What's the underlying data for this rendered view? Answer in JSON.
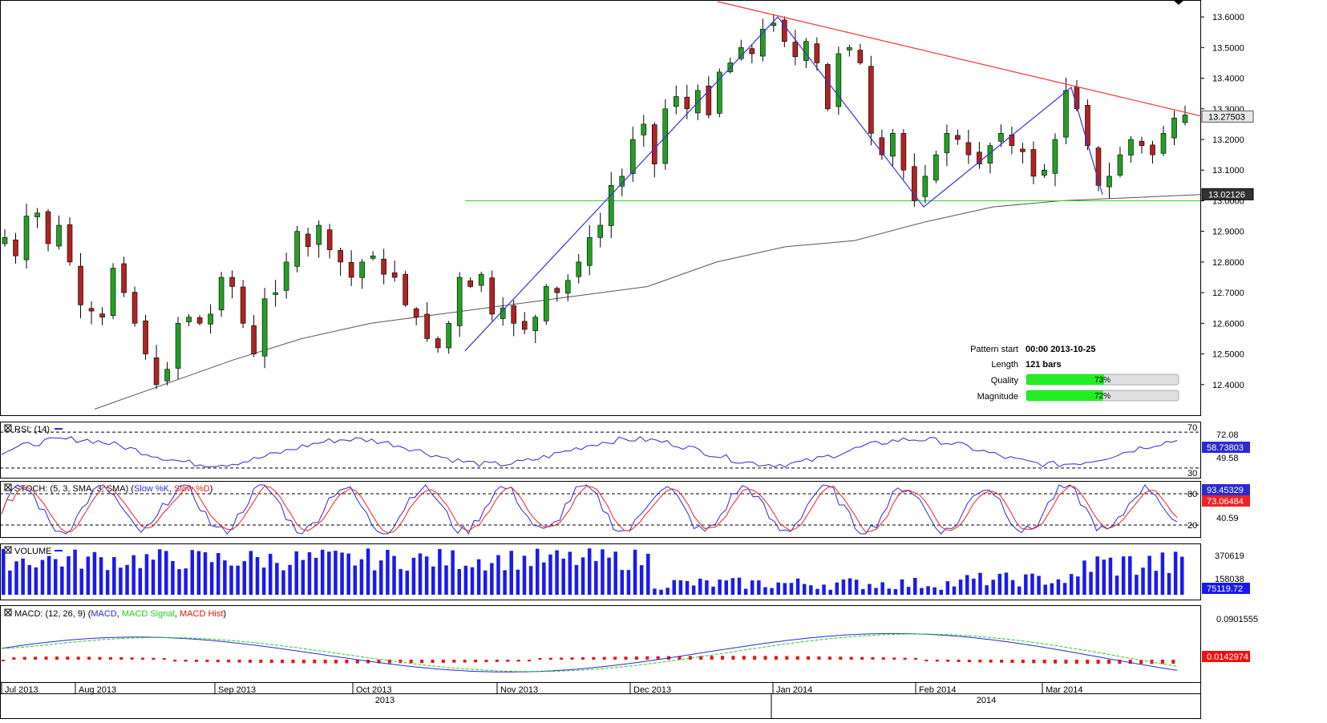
{
  "chart_data": {
    "type": "candlestick",
    "x_labels": [
      "Jul 2013",
      "Aug 2013",
      "Sep 2013",
      "Oct 2013",
      "Nov 2013",
      "Dec 2013",
      "Jan 2014",
      "Feb 2014",
      "Mar 2014"
    ],
    "year_labels": [
      "2013",
      "2014"
    ],
    "price": {
      "ylim": [
        12.3,
        13.65
      ],
      "ticks": [
        "13.6000",
        "13.5000",
        "13.4000",
        "13.3000",
        "13.2000",
        "13.1000",
        "13.0000",
        "12.9000",
        "12.8000",
        "12.7000",
        "12.6000",
        "12.5000",
        "12.4000"
      ],
      "last_price": "13.27503",
      "ma_value": "13.02126",
      "support_level": 13.0,
      "close_path": [
        12.88,
        12.82,
        12.95,
        12.96,
        12.86,
        12.92,
        12.8,
        12.66,
        12.64,
        12.62,
        12.78,
        12.7,
        12.6,
        12.5,
        12.4,
        12.45,
        12.6,
        12.62,
        12.6,
        12.63,
        12.75,
        12.72,
        12.6,
        12.5,
        12.68,
        12.7,
        12.8,
        12.9,
        12.85,
        12.92,
        12.84,
        12.8,
        12.75,
        12.8,
        12.82,
        12.76,
        12.75,
        12.66,
        12.62,
        12.55,
        12.52,
        12.6,
        12.75,
        12.72,
        12.76,
        12.63,
        12.65,
        12.6,
        12.58,
        12.62,
        12.72,
        12.7,
        12.74,
        12.8,
        12.88,
        12.92,
        13.05,
        13.08,
        13.2,
        13.25,
        13.12,
        13.3,
        13.34,
        13.3,
        13.36,
        13.28,
        13.42,
        13.45,
        13.5,
        13.48,
        13.56,
        13.58,
        13.52,
        13.47,
        13.52,
        13.45,
        13.3,
        13.48,
        13.5,
        13.45,
        13.22,
        13.15,
        13.22,
        13.1,
        13.0,
        13.08,
        13.15,
        13.22,
        13.2,
        13.15,
        13.12,
        13.18,
        13.22,
        13.18,
        13.16,
        13.08,
        13.1,
        13.2,
        13.36,
        13.3,
        13.18,
        13.05,
        13.08,
        13.15,
        13.2,
        13.18,
        13.15,
        13.22,
        13.27,
        13.28
      ],
      "ma_path": [
        12.32,
        12.4,
        12.48,
        12.55,
        12.6,
        12.63,
        12.66,
        12.69,
        12.72,
        12.8,
        12.85,
        12.87,
        12.93,
        12.98,
        13.0,
        13.01,
        13.02
      ],
      "zigzag": [
        {
          "x": 580,
          "y": 12.51
        },
        {
          "x": 970,
          "y": 13.6
        },
        {
          "x": 1152,
          "y": 12.98
        },
        {
          "x": 1336,
          "y": 13.37
        },
        {
          "x": 1375,
          "y": 13.02
        }
      ],
      "trendline": [
        {
          "x": 895,
          "y": 13.65
        },
        {
          "x": 1500,
          "y": 13.275
        }
      ]
    },
    "pattern_info": {
      "pattern_start_label": "Pattern start",
      "pattern_start_value": "00:00 2013-10-25",
      "length_label": "Length",
      "length_value": "121 bars",
      "quality_label": "Quality",
      "quality_pct": 73,
      "quality_text": "73%",
      "magnitude_label": "Magnitude",
      "magnitude_pct": 72,
      "magnitude_text": "72%"
    },
    "rsi": {
      "title": "RSI: (14)",
      "levels": [
        70,
        30
      ],
      "level_labels": [
        "70",
        "30"
      ],
      "ticks": [
        "72.08",
        "49.58"
      ],
      "last_value": "58.73803"
    },
    "stoch": {
      "title_prefix": "STOCH: (5, 3, SMA, 3, SMA) (",
      "k_label": "Slow %K",
      "sep": ", ",
      "d_label": "Slow %D",
      "title_suffix": ")",
      "levels": [
        80,
        20
      ],
      "level_labels": [
        "80",
        "20"
      ],
      "ticks": [
        "40.59"
      ],
      "k_value": "93.45329",
      "d_value": "73.06484"
    },
    "volume": {
      "title": "VOLUME",
      "ticks": [
        "370619",
        "158038"
      ],
      "last_value": "75119.72"
    },
    "macd": {
      "title_prefix": "MACD: (12, 26, 9) (",
      "macd_label": "MACD",
      "signal_label": "MACD Signal",
      "hist_label": "MACD Hist",
      "title_suffix": ")",
      "ticks": [
        "0.0901555"
      ],
      "last_value": "0.0142974"
    },
    "colors": {
      "bull": "#22a022",
      "bear": "#b22222",
      "zigzag": "#3333dd",
      "trendline": "#ff3333",
      "support": "#22dd22",
      "ma": "#555555",
      "rsi": "#2a2ad0",
      "stoch_k": "#2a2ad0",
      "stoch_d": "#ee2222",
      "volume": "#1a1aee",
      "macd": "#2a2ad0",
      "signal": "#22cc22",
      "hist": "#ee1111"
    }
  }
}
